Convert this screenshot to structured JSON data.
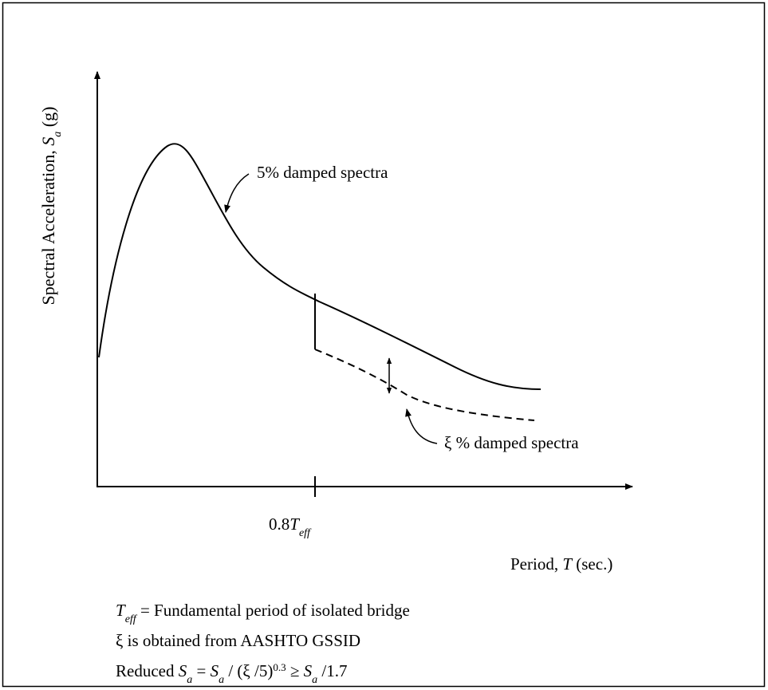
{
  "y_axis_label": [
    {
      "text": "Spectral Acceleration, "
    },
    {
      "text": "S",
      "style": "italic"
    },
    {
      "text": "a",
      "style": "italic-sub"
    },
    {
      "text": " (g)"
    }
  ],
  "curve_label_5": [
    {
      "text": "5% damped spectra"
    }
  ],
  "curve_label_xi": [
    {
      "text": "ξ % damped spectra"
    }
  ],
  "tick_label": [
    {
      "text": "0.8"
    },
    {
      "text": "T",
      "style": "italic"
    },
    {
      "text": "eff",
      "style": "italic-sub"
    }
  ],
  "x_axis_label": [
    {
      "text": "Period, "
    },
    {
      "text": "T",
      "style": "italic"
    },
    {
      "text": " (sec.)"
    }
  ],
  "notes": [
    [
      {
        "text": "T",
        "style": "italic"
      },
      {
        "text": "eff",
        "style": "italic-sub"
      },
      {
        "text": " = Fundamental period of isolated bridge"
      }
    ],
    [
      {
        "text": "ξ is obtained from AASHTO GSSID"
      }
    ],
    [
      {
        "text": "Reduced "
      },
      {
        "text": "S",
        "style": "italic"
      },
      {
        "text": "a",
        "style": "italic-sub"
      },
      {
        "text": " = "
      },
      {
        "text": "S",
        "style": "italic"
      },
      {
        "text": "a",
        "style": "italic-sub"
      },
      {
        "text": " / (ξ /5)"
      },
      {
        "text": "0.3",
        "style": "sup"
      },
      {
        "text": " ≥ "
      },
      {
        "text": "S",
        "style": "italic"
      },
      {
        "text": "a",
        "style": "italic-sub"
      },
      {
        "text": " /1.7"
      }
    ]
  ]
}
